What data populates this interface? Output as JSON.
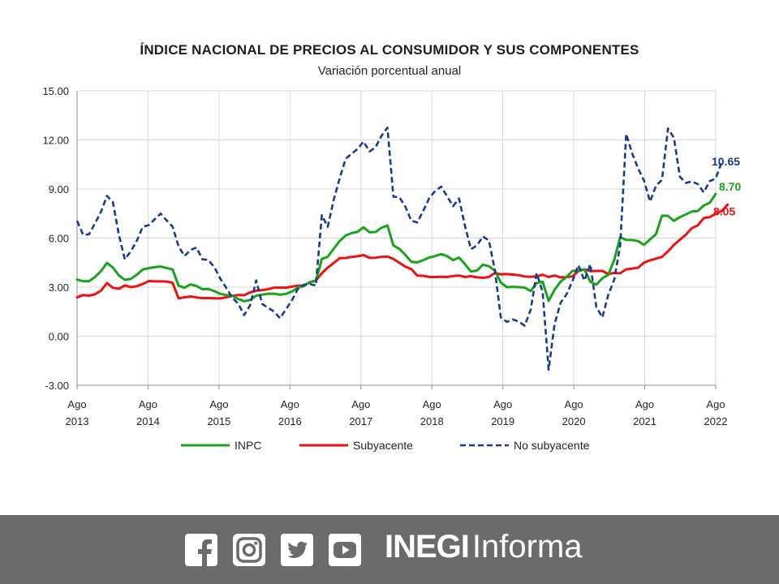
{
  "chart_data": {
    "type": "line",
    "title": "ÍNDICE NACIONAL DE PRECIOS AL CONSUMIDOR Y SUS COMPONENTES",
    "subtitle": "Variación porcentual anual",
    "xlabel": "",
    "ylabel": "",
    "ylim": [
      -3,
      15
    ],
    "y_ticks": [
      "15.00",
      "12.00",
      "9.00",
      "6.00",
      "3.00",
      "0.00",
      "-3.00"
    ],
    "x_ticks": [
      {
        "month": "Ago",
        "year": "2013"
      },
      {
        "month": "Ago",
        "year": "2014"
      },
      {
        "month": "Ago",
        "year": "2015"
      },
      {
        "month": "Ago",
        "year": "2016"
      },
      {
        "month": "Ago",
        "year": "2017"
      },
      {
        "month": "Ago",
        "year": "2018"
      },
      {
        "month": "Ago",
        "year": "2019"
      },
      {
        "month": "Ago",
        "year": "2020"
      },
      {
        "month": "Ago",
        "year": "2021"
      },
      {
        "month": "Ago",
        "year": "2022"
      }
    ],
    "x_start": "2013-08",
    "x_end": "2022-08",
    "grid": true,
    "legend_position": "bottom",
    "series": [
      {
        "name": "INPC",
        "color": "#1aa31a",
        "style": "solid",
        "end_label": "8.70",
        "values": [
          3.46,
          3.36,
          3.36,
          3.62,
          3.97,
          4.48,
          4.2,
          3.72,
          3.45,
          3.5,
          3.76,
          4.08,
          4.16,
          4.22,
          4.26,
          4.17,
          4.08,
          3.09,
          2.96,
          3.17,
          3.07,
          2.87,
          2.89,
          2.75,
          2.59,
          2.52,
          2.48,
          2.27,
          2.14,
          2.21,
          2.48,
          2.54,
          2.6,
          2.6,
          2.54,
          2.59,
          2.73,
          2.97,
          3.06,
          3.31,
          3.36,
          4.72,
          4.86,
          5.35,
          5.82,
          6.16,
          6.3,
          6.38,
          6.66,
          6.35,
          6.37,
          6.63,
          6.77,
          5.55,
          5.34,
          4.97,
          4.55,
          4.51,
          4.65,
          4.81,
          4.9,
          5.02,
          4.9,
          4.65,
          4.81,
          4.4,
          3.95,
          4.02,
          4.37,
          4.28,
          4.0,
          3.28,
          3.0,
          3.02,
          3.0,
          2.97,
          2.76,
          3.25,
          3.33,
          2.15,
          2.84,
          3.33,
          3.62,
          3.99,
          4.01,
          4.09,
          3.33,
          3.15,
          3.54,
          3.76,
          4.67,
          6.05,
          5.89,
          5.88,
          5.81,
          5.59,
          5.92,
          6.24,
          7.37,
          7.36,
          7.05,
          7.28,
          7.45,
          7.62,
          7.65,
          7.99,
          8.15,
          8.7
        ]
      },
      {
        "name": "Subyacente",
        "color": "#ee1111",
        "style": "solid",
        "end_label": "8.05",
        "values": [
          2.37,
          2.52,
          2.48,
          2.56,
          2.78,
          3.25,
          2.96,
          2.9,
          3.1,
          3.0,
          3.06,
          3.19,
          3.37,
          3.35,
          3.35,
          3.34,
          3.27,
          2.31,
          2.38,
          2.43,
          2.37,
          2.33,
          2.33,
          2.32,
          2.31,
          2.38,
          2.46,
          2.52,
          2.51,
          2.68,
          2.78,
          2.82,
          2.87,
          2.97,
          2.97,
          2.97,
          3.03,
          3.09,
          3.1,
          3.3,
          3.4,
          3.85,
          4.19,
          4.48,
          4.77,
          4.78,
          4.85,
          4.89,
          4.96,
          4.79,
          4.8,
          4.85,
          4.87,
          4.72,
          4.49,
          4.26,
          4.1,
          3.71,
          3.69,
          3.62,
          3.62,
          3.63,
          3.62,
          3.68,
          3.71,
          3.62,
          3.67,
          3.6,
          3.57,
          3.62,
          3.87,
          3.78,
          3.8,
          3.77,
          3.73,
          3.65,
          3.63,
          3.66,
          3.76,
          3.62,
          3.71,
          3.6,
          3.61,
          3.66,
          3.98,
          4.09,
          3.98,
          3.99,
          3.99,
          3.8,
          3.87,
          3.85,
          4.09,
          4.13,
          4.19,
          4.5,
          4.64,
          4.74,
          4.85,
          5.19,
          5.58,
          5.9,
          6.21,
          6.61,
          6.78,
          7.22,
          7.28,
          7.49,
          7.65,
          8.05
        ]
      },
      {
        "name": "No subyacente",
        "color": "#1a3a8f",
        "style": "dashed",
        "end_label": "10.65",
        "values": [
          7.05,
          6.2,
          6.23,
          6.9,
          7.6,
          8.58,
          8.2,
          6.2,
          4.7,
          5.19,
          5.83,
          6.69,
          6.79,
          7.15,
          7.5,
          7.08,
          6.7,
          5.5,
          4.9,
          5.27,
          5.42,
          4.7,
          4.66,
          4.21,
          3.52,
          2.95,
          2.35,
          1.99,
          1.29,
          1.9,
          3.41,
          1.98,
          1.73,
          1.51,
          1.1,
          1.64,
          2.2,
          2.89,
          3.15,
          3.19,
          3.1,
          7.4,
          6.69,
          8.35,
          9.65,
          10.85,
          11.15,
          11.45,
          11.9,
          11.29,
          11.55,
          12.25,
          12.75,
          8.53,
          8.5,
          7.92,
          7.06,
          6.95,
          7.67,
          8.44,
          8.88,
          9.15,
          8.55,
          7.95,
          8.42,
          6.72,
          5.32,
          5.55,
          6.1,
          5.85,
          4.02,
          1.15,
          0.88,
          1.02,
          0.9,
          0.64,
          1.62,
          3.85,
          2.72,
          -2.05,
          0.73,
          2.05,
          2.55,
          3.37,
          4.35,
          3.4,
          4.4,
          1.78,
          1.15,
          2.54,
          3.46,
          5.55,
          12.37,
          11.18,
          10.26,
          9.5,
          8.23,
          9.2,
          9.56,
          12.7,
          12.13,
          9.75,
          9.37,
          9.46,
          9.3,
          8.79,
          9.48,
          9.64,
          10.65
        ]
      }
    ]
  },
  "footer": {
    "social_icons": [
      "facebook-icon",
      "instagram-icon",
      "twitter-icon",
      "youtube-icon"
    ],
    "brand_bold": "INEGI",
    "brand_light": "Informa",
    "background_color": "#6b6b6b"
  }
}
